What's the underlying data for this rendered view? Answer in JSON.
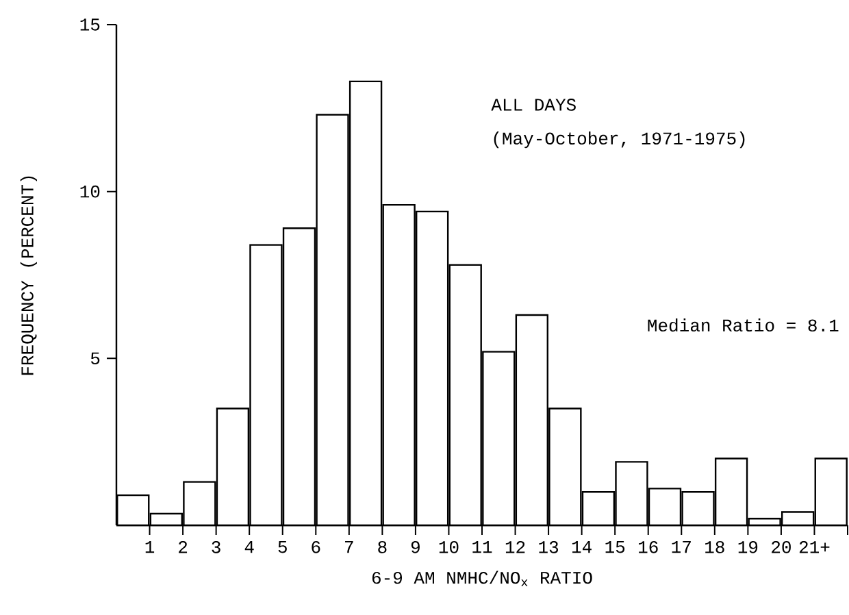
{
  "chart_data": {
    "type": "histogram",
    "xlabel": "6-9 AM NMHC/NO$_{x}$ RATIO",
    "ylabel": "FREQUENCY (PERCENT)",
    "annotations": [
      "ALL DAYS",
      "(May-October, 1971-1975)",
      "Median Ratio = 8.1"
    ],
    "bins": [
      0,
      1,
      2,
      3,
      4,
      5,
      6,
      7,
      8,
      9,
      10,
      11,
      12,
      13,
      14,
      15,
      16,
      17,
      18,
      19,
      20,
      21,
      22
    ],
    "values": [
      0.9,
      0.35,
      1.3,
      3.5,
      8.4,
      8.9,
      12.3,
      13.3,
      9.6,
      9.4,
      7.8,
      5.2,
      6.3,
      3.5,
      1.0,
      1.9,
      1.1,
      1.0,
      2.0,
      0.2,
      0.4,
      2.0
    ],
    "xlim": [
      0,
      22
    ],
    "ylim": [
      0,
      15
    ],
    "xticks": [
      1,
      2,
      3,
      4,
      5,
      6,
      7,
      8,
      9,
      10,
      11,
      12,
      13,
      14,
      15,
      16,
      17,
      18,
      19,
      20,
      {
        "value": 21,
        "label": "21+"
      },
      {
        "value": 22,
        "label": null
      }
    ],
    "yticks": [
      5,
      10,
      15
    ],
    "grid": false
  }
}
